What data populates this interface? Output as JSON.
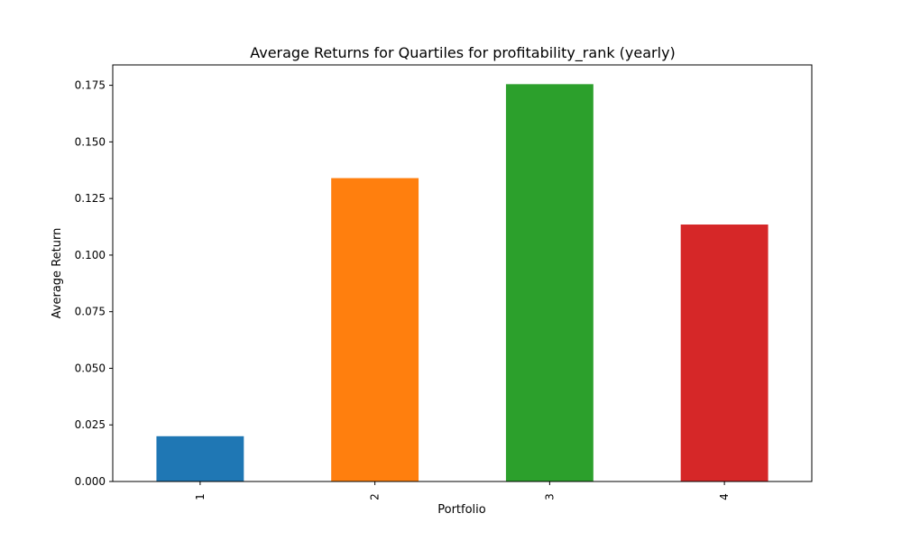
{
  "chart_data": {
    "type": "bar",
    "title": "Average Returns for Quartiles for profitability_rank (yearly)",
    "xlabel": "Portfolio",
    "ylabel": "Average Return",
    "categories": [
      "1",
      "2",
      "3",
      "4"
    ],
    "values": [
      0.02,
      0.134,
      0.1755,
      0.1135
    ],
    "colors": [
      "#1f77b4",
      "#ff7f0e",
      "#2ca02c",
      "#d62728"
    ],
    "ylim": [
      0,
      0.184
    ],
    "yticks": [
      0.0,
      0.025,
      0.05,
      0.075,
      0.1,
      0.125,
      0.15,
      0.175
    ],
    "ytick_labels": [
      "0.000",
      "0.025",
      "0.050",
      "0.075",
      "0.100",
      "0.125",
      "0.150",
      "0.175"
    ],
    "xtick_rotation": "vertical",
    "grid": false,
    "legend": "none"
  }
}
